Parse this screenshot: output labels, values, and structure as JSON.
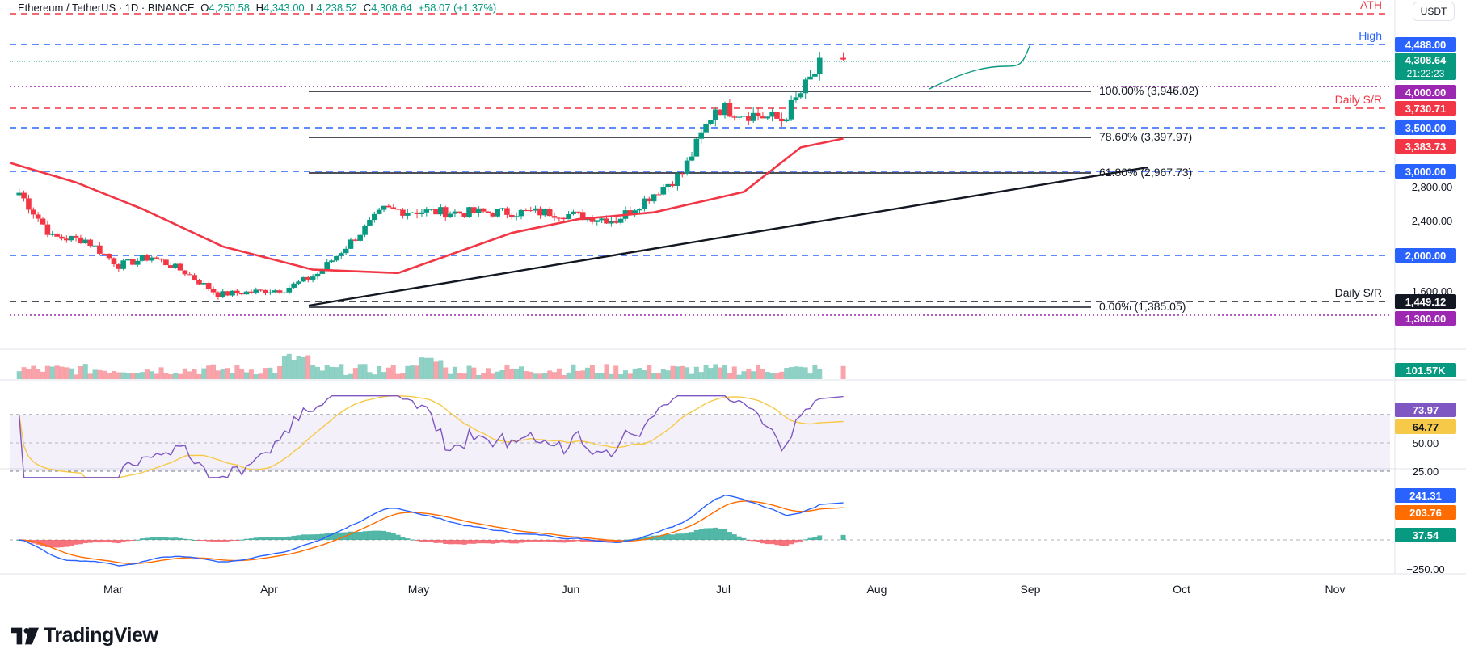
{
  "header": {
    "symbol": "Ethereum / TetherUS · 1D · BINANCE",
    "open_label": "O",
    "open": "4,250.58",
    "high_label": "H",
    "high": "4,343.00",
    "low_label": "L",
    "low": "4,238.52",
    "close_label": "C",
    "close": "4,308.64",
    "change": "+58.07 (+1.37%)"
  },
  "currency_button": "USDT",
  "branding": {
    "name": "TradingView"
  },
  "colors": {
    "bull": "#089981",
    "bear": "#f23645",
    "sma": "#f23645",
    "blue": "#2962ff",
    "purple": "#9c27b0",
    "rsi": "#7e57c2",
    "rsi_ma": "#f7c948",
    "macd_signal": "#ff6d00"
  },
  "chart_data": [
    {
      "type": "candlestick",
      "title": "Ethereum / TetherUS · 1D · BINANCE",
      "x_axis_ticks": [
        "Mar",
        "Apr",
        "May",
        "Jun",
        "Jul",
        "Aug",
        "Sep",
        "Oct",
        "Nov"
      ],
      "y_axis_ticks": [
        "1,600.00",
        "2,000.00",
        "2,400.00",
        "2,800.00",
        "3,000.00"
      ],
      "last_price": "4,308.64",
      "countdown": "21:22:23",
      "ohlc_weekly_approx": [
        {
          "date": "2025-02-17",
          "o": 2670,
          "h": 2850,
          "l": 2600,
          "c": 2750
        },
        {
          "date": "2025-02-24",
          "o": 2750,
          "h": 2790,
          "l": 2100,
          "c": 2230
        },
        {
          "date": "2025-03-03",
          "o": 2230,
          "h": 2530,
          "l": 2080,
          "c": 2200
        },
        {
          "date": "2025-03-10",
          "o": 2200,
          "h": 2250,
          "l": 1770,
          "c": 1900
        },
        {
          "date": "2025-03-17",
          "o": 1900,
          "h": 2100,
          "l": 1850,
          "c": 2000
        },
        {
          "date": "2025-03-24",
          "o": 2000,
          "h": 2100,
          "l": 1780,
          "c": 1820
        },
        {
          "date": "2025-03-31",
          "o": 1820,
          "h": 1950,
          "l": 1380,
          "c": 1560
        },
        {
          "date": "2025-04-14",
          "o": 1560,
          "h": 1680,
          "l": 1540,
          "c": 1620
        },
        {
          "date": "2025-04-21",
          "o": 1620,
          "h": 1820,
          "l": 1600,
          "c": 1800
        },
        {
          "date": "2025-05-05",
          "o": 1800,
          "h": 2600,
          "l": 1780,
          "c": 2550
        },
        {
          "date": "2025-05-19",
          "o": 2550,
          "h": 2700,
          "l": 2420,
          "c": 2520
        },
        {
          "date": "2025-06-09",
          "o": 2520,
          "h": 2880,
          "l": 2480,
          "c": 2520
        },
        {
          "date": "2025-06-23",
          "o": 2520,
          "h": 2560,
          "l": 2110,
          "c": 2430
        },
        {
          "date": "2025-07-07",
          "o": 2430,
          "h": 3050,
          "l": 2420,
          "c": 2980
        },
        {
          "date": "2025-07-14",
          "o": 2980,
          "h": 3850,
          "l": 2950,
          "c": 3750
        },
        {
          "date": "2025-07-28",
          "o": 3750,
          "h": 3950,
          "l": 3350,
          "c": 3600
        },
        {
          "date": "2025-08-06",
          "o": 3600,
          "h": 4330,
          "l": 3580,
          "c": 4308.64
        }
      ],
      "sma50_approx": [
        {
          "date": "2025-02-15",
          "v": 3100
        },
        {
          "date": "2025-03-01",
          "v": 2870
        },
        {
          "date": "2025-03-15",
          "v": 2560
        },
        {
          "date": "2025-04-01",
          "v": 2120
        },
        {
          "date": "2025-04-20",
          "v": 1850
        },
        {
          "date": "2025-05-08",
          "v": 1810
        },
        {
          "date": "2025-06-01",
          "v": 2280
        },
        {
          "date": "2025-06-15",
          "v": 2440
        },
        {
          "date": "2025-07-01",
          "v": 2520
        },
        {
          "date": "2025-07-20",
          "v": 2760
        },
        {
          "date": "2025-08-01",
          "v": 3280
        },
        {
          "date": "2025-08-10",
          "v": 3383.73
        }
      ],
      "horizontal_levels": [
        {
          "label": "ATH",
          "price_label": null,
          "style": "dashed",
          "color": "#f23645"
        },
        {
          "label": "High",
          "price_label": "4,488.00",
          "style": "dashed",
          "color": "#2962ff"
        },
        {
          "label": null,
          "price_label": "4,000.00",
          "style": "dotted",
          "color": "#9c27b0"
        },
        {
          "label": "Daily S/R",
          "price_label": "3,730.71",
          "style": "dashed",
          "color": "#f23645"
        },
        {
          "label": null,
          "price_label": "3,500.00",
          "style": "dashed",
          "color": "#2962ff"
        },
        {
          "label": null,
          "price_label": "3,000.00",
          "style": "dashed",
          "color": "#2962ff"
        },
        {
          "label": null,
          "price_label": "2,000.00",
          "style": "dashed",
          "color": "#2962ff"
        },
        {
          "label": "Daily S/R",
          "price_label": "1,449.12",
          "style": "dashed",
          "color": "#131722"
        },
        {
          "label": null,
          "price_label": "1,300.00",
          "style": "dotted",
          "color": "#9c27b0"
        }
      ],
      "sma_label": "3,383.73",
      "fibonacci": [
        {
          "text": "100.00% (3,946.02)"
        },
        {
          "text": "78.60% (3,397.97)"
        },
        {
          "text": "61.80% (2,967.73)"
        },
        {
          "text": "0.00% (1,385.05)"
        }
      ],
      "trendline": {
        "from": {
          "date": "2025-04-09",
          "price": 1385
        },
        "to": {
          "date": "2025-08-20",
          "price": 3000
        }
      }
    },
    {
      "type": "bar",
      "title": "Volume",
      "last_value_label": "101.57K"
    },
    {
      "type": "line",
      "title": "RSI",
      "levels": [
        "50.00",
        "25.00"
      ],
      "rsi_label": "73.97",
      "rsi_ma_label": "64.77",
      "overbought": 70,
      "oversold": 30
    },
    {
      "type": "line",
      "title": "MACD",
      "macd_label": "241.31",
      "signal_label": "203.76",
      "hist_label": "37.54",
      "axis_tick": "−250.00"
    }
  ]
}
